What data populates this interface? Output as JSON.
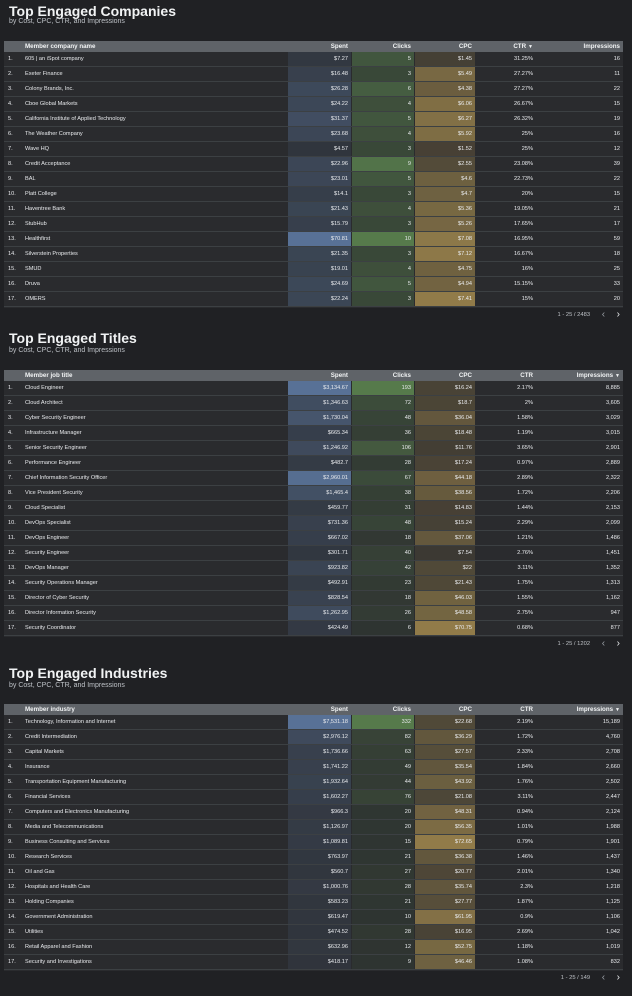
{
  "colors": {
    "spent": "#6f94c8",
    "clicks": "#6ba05a",
    "cpc": "#c2a257"
  },
  "sections": [
    {
      "title": "Top Engaged Companies",
      "subtitle": "by Cost, CPC, CTR, and Impressions",
      "columns": {
        "name": "Member company name",
        "spent": "Spent",
        "clicks": "Clicks",
        "cpc": "CPC",
        "ctr": "CTR",
        "impressions": "Impressions"
      },
      "sort_column": "ctr",
      "pagination": "1 - 25 / 2483",
      "rows": [
        {
          "idx": "1.",
          "name": "605 | an iSpot company",
          "spent": "$7.27",
          "clicks": "5",
          "cpc": "$1.45",
          "ctr": "31.25%",
          "impressions": "16"
        },
        {
          "idx": "2.",
          "name": "Exeter Finance",
          "spent": "$16.48",
          "clicks": "3",
          "cpc": "$5.49",
          "ctr": "27.27%",
          "impressions": "11"
        },
        {
          "idx": "3.",
          "name": "Colony Brands, Inc.",
          "spent": "$26.28",
          "clicks": "6",
          "cpc": "$4.38",
          "ctr": "27.27%",
          "impressions": "22"
        },
        {
          "idx": "4.",
          "name": "Cboe Global Markets",
          "spent": "$24.22",
          "clicks": "4",
          "cpc": "$6.06",
          "ctr": "26.67%",
          "impressions": "15"
        },
        {
          "idx": "5.",
          "name": "California Institute of Applied Technology",
          "spent": "$31.37",
          "clicks": "5",
          "cpc": "$6.27",
          "ctr": "26.32%",
          "impressions": "19"
        },
        {
          "idx": "6.",
          "name": "The Weather Company",
          "spent": "$23.68",
          "clicks": "4",
          "cpc": "$5.92",
          "ctr": "25%",
          "impressions": "16"
        },
        {
          "idx": "7.",
          "name": "Wave HQ",
          "spent": "$4.57",
          "clicks": "3",
          "cpc": "$1.52",
          "ctr": "25%",
          "impressions": "12"
        },
        {
          "idx": "8.",
          "name": "Credit Acceptance",
          "spent": "$22.96",
          "clicks": "9",
          "cpc": "$2.55",
          "ctr": "23.08%",
          "impressions": "39"
        },
        {
          "idx": "9.",
          "name": "BAL",
          "spent": "$23.01",
          "clicks": "5",
          "cpc": "$4.6",
          "ctr": "22.73%",
          "impressions": "22"
        },
        {
          "idx": "10.",
          "name": "Platt College",
          "spent": "$14.1",
          "clicks": "3",
          "cpc": "$4.7",
          "ctr": "20%",
          "impressions": "15"
        },
        {
          "idx": "11.",
          "name": "Haventree Bank",
          "spent": "$21.43",
          "clicks": "4",
          "cpc": "$5.36",
          "ctr": "19.05%",
          "impressions": "21"
        },
        {
          "idx": "12.",
          "name": "StubHub",
          "spent": "$15.79",
          "clicks": "3",
          "cpc": "$5.26",
          "ctr": "17.65%",
          "impressions": "17"
        },
        {
          "idx": "13.",
          "name": "Healthfirst",
          "spent": "$70.81",
          "clicks": "10",
          "cpc": "$7.08",
          "ctr": "16.95%",
          "impressions": "59"
        },
        {
          "idx": "14.",
          "name": "Silverstein Properties",
          "spent": "$21.35",
          "clicks": "3",
          "cpc": "$7.12",
          "ctr": "16.67%",
          "impressions": "18"
        },
        {
          "idx": "15.",
          "name": "SMUD",
          "spent": "$19.01",
          "clicks": "4",
          "cpc": "$4.75",
          "ctr": "16%",
          "impressions": "25"
        },
        {
          "idx": "16.",
          "name": "Druva",
          "spent": "$24.69",
          "clicks": "5",
          "cpc": "$4.94",
          "ctr": "15.15%",
          "impressions": "33"
        },
        {
          "idx": "17.",
          "name": "OMERS",
          "spent": "$22.24",
          "clicks": "3",
          "cpc": "$7.41",
          "ctr": "15%",
          "impressions": "20"
        }
      ]
    },
    {
      "title": "Top Engaged Titles",
      "subtitle": "by Cost, CPC, CTR, and Impressions",
      "columns": {
        "name": "Member job title",
        "spent": "Spent",
        "clicks": "Clicks",
        "cpc": "CPC",
        "ctr": "CTR",
        "impressions": "Impressions"
      },
      "sort_column": "impressions",
      "pagination": "1 - 25 / 1202",
      "rows": [
        {
          "idx": "1.",
          "name": "Cloud Engineer",
          "spent": "$3,134.67",
          "clicks": "193",
          "cpc": "$16.24",
          "ctr": "2.17%",
          "impressions": "8,885"
        },
        {
          "idx": "2.",
          "name": "Cloud Architect",
          "spent": "$1,346.63",
          "clicks": "72",
          "cpc": "$18.7",
          "ctr": "2%",
          "impressions": "3,605"
        },
        {
          "idx": "3.",
          "name": "Cyber Security Engineer",
          "spent": "$1,730.04",
          "clicks": "48",
          "cpc": "$36.04",
          "ctr": "1.58%",
          "impressions": "3,029"
        },
        {
          "idx": "4.",
          "name": "Infrastructure Manager",
          "spent": "$665.34",
          "clicks": "36",
          "cpc": "$18.48",
          "ctr": "1.19%",
          "impressions": "3,015"
        },
        {
          "idx": "5.",
          "name": "Senior Security Engineer",
          "spent": "$1,246.92",
          "clicks": "106",
          "cpc": "$11.76",
          "ctr": "3.65%",
          "impressions": "2,901"
        },
        {
          "idx": "6.",
          "name": "Performance Engineer",
          "spent": "$482.7",
          "clicks": "28",
          "cpc": "$17.24",
          "ctr": "0.97%",
          "impressions": "2,889"
        },
        {
          "idx": "7.",
          "name": "Chief Information Security Officer",
          "spent": "$2,960.01",
          "clicks": "67",
          "cpc": "$44.18",
          "ctr": "2.89%",
          "impressions": "2,322"
        },
        {
          "idx": "8.",
          "name": "Vice President Security",
          "spent": "$1,465.4",
          "clicks": "38",
          "cpc": "$38.56",
          "ctr": "1.72%",
          "impressions": "2,206"
        },
        {
          "idx": "9.",
          "name": "Cloud Specialist",
          "spent": "$459.77",
          "clicks": "31",
          "cpc": "$14.83",
          "ctr": "1.44%",
          "impressions": "2,153"
        },
        {
          "idx": "10.",
          "name": "DevOps Specialist",
          "spent": "$731.36",
          "clicks": "48",
          "cpc": "$15.24",
          "ctr": "2.29%",
          "impressions": "2,099"
        },
        {
          "idx": "11.",
          "name": "DevOps Engineer",
          "spent": "$667.02",
          "clicks": "18",
          "cpc": "$37.06",
          "ctr": "1.21%",
          "impressions": "1,486"
        },
        {
          "idx": "12.",
          "name": "Security Engineer",
          "spent": "$301.71",
          "clicks": "40",
          "cpc": "$7.54",
          "ctr": "2.76%",
          "impressions": "1,451"
        },
        {
          "idx": "13.",
          "name": "DevOps Manager",
          "spent": "$923.82",
          "clicks": "42",
          "cpc": "$22",
          "ctr": "3.11%",
          "impressions": "1,352"
        },
        {
          "idx": "14.",
          "name": "Security Operations Manager",
          "spent": "$492.91",
          "clicks": "23",
          "cpc": "$21.43",
          "ctr": "1.75%",
          "impressions": "1,313"
        },
        {
          "idx": "15.",
          "name": "Director of Cyber Security",
          "spent": "$828.54",
          "clicks": "18",
          "cpc": "$46.03",
          "ctr": "1.55%",
          "impressions": "1,162"
        },
        {
          "idx": "16.",
          "name": "Director Information Security",
          "spent": "$1,262.95",
          "clicks": "26",
          "cpc": "$48.58",
          "ctr": "2.75%",
          "impressions": "947"
        },
        {
          "idx": "17.",
          "name": "Security Coordinator",
          "spent": "$424.49",
          "clicks": "6",
          "cpc": "$70.75",
          "ctr": "0.68%",
          "impressions": "877"
        }
      ]
    },
    {
      "title": "Top Engaged Industries",
      "subtitle": "by Cost, CPC, CTR, and Impressions",
      "columns": {
        "name": "Member industry",
        "spent": "Spent",
        "clicks": "Clicks",
        "cpc": "CPC",
        "ctr": "CTR",
        "impressions": "Impressions"
      },
      "sort_column": "impressions",
      "pagination": "1 - 25 / 149",
      "rows": [
        {
          "idx": "1.",
          "name": "Technology, Information and Internet",
          "spent": "$7,531.18",
          "clicks": "332",
          "cpc": "$22.68",
          "ctr": "2.19%",
          "impressions": "15,189"
        },
        {
          "idx": "2.",
          "name": "Credit Intermediation",
          "spent": "$2,976.12",
          "clicks": "82",
          "cpc": "$36.29",
          "ctr": "1.72%",
          "impressions": "4,760"
        },
        {
          "idx": "3.",
          "name": "Capital Markets",
          "spent": "$1,736.66",
          "clicks": "63",
          "cpc": "$27.57",
          "ctr": "2.33%",
          "impressions": "2,708"
        },
        {
          "idx": "4.",
          "name": "Insurance",
          "spent": "$1,741.22",
          "clicks": "49",
          "cpc": "$35.54",
          "ctr": "1.84%",
          "impressions": "2,660"
        },
        {
          "idx": "5.",
          "name": "Transportation Equipment Manufacturing",
          "spent": "$1,932.64",
          "clicks": "44",
          "cpc": "$43.92",
          "ctr": "1.76%",
          "impressions": "2,502"
        },
        {
          "idx": "6.",
          "name": "Financial Services",
          "spent": "$1,602.27",
          "clicks": "76",
          "cpc": "$21.08",
          "ctr": "3.11%",
          "impressions": "2,447"
        },
        {
          "idx": "7.",
          "name": "Computers and Electronics Manufacturing",
          "spent": "$966.3",
          "clicks": "20",
          "cpc": "$48.31",
          "ctr": "0.94%",
          "impressions": "2,124"
        },
        {
          "idx": "8.",
          "name": "Media and Telecommunications",
          "spent": "$1,126.97",
          "clicks": "20",
          "cpc": "$56.35",
          "ctr": "1.01%",
          "impressions": "1,988"
        },
        {
          "idx": "9.",
          "name": "Business Consulting and Services",
          "spent": "$1,089.81",
          "clicks": "15",
          "cpc": "$72.65",
          "ctr": "0.79%",
          "impressions": "1,901"
        },
        {
          "idx": "10.",
          "name": "Research Services",
          "spent": "$763.97",
          "clicks": "21",
          "cpc": "$36.38",
          "ctr": "1.46%",
          "impressions": "1,437"
        },
        {
          "idx": "11.",
          "name": "Oil and Gas",
          "spent": "$560.7",
          "clicks": "27",
          "cpc": "$20.77",
          "ctr": "2.01%",
          "impressions": "1,340"
        },
        {
          "idx": "12.",
          "name": "Hospitals and Health Care",
          "spent": "$1,000.76",
          "clicks": "28",
          "cpc": "$35.74",
          "ctr": "2.3%",
          "impressions": "1,218"
        },
        {
          "idx": "13.",
          "name": "Holding Companies",
          "spent": "$583.23",
          "clicks": "21",
          "cpc": "$27.77",
          "ctr": "1.87%",
          "impressions": "1,125"
        },
        {
          "idx": "14.",
          "name": "Government Administration",
          "spent": "$619.47",
          "clicks": "10",
          "cpc": "$61.95",
          "ctr": "0.9%",
          "impressions": "1,106"
        },
        {
          "idx": "15.",
          "name": "Utilities",
          "spent": "$474.52",
          "clicks": "28",
          "cpc": "$16.95",
          "ctr": "2.69%",
          "impressions": "1,042"
        },
        {
          "idx": "16.",
          "name": "Retail Apparel and Fashion",
          "spent": "$632.96",
          "clicks": "12",
          "cpc": "$52.75",
          "ctr": "1.18%",
          "impressions": "1,019"
        },
        {
          "idx": "17.",
          "name": "Security and Investigations",
          "spent": "$418.17",
          "clicks": "9",
          "cpc": "$46.46",
          "ctr": "1.08%",
          "impressions": "832"
        }
      ]
    }
  ]
}
